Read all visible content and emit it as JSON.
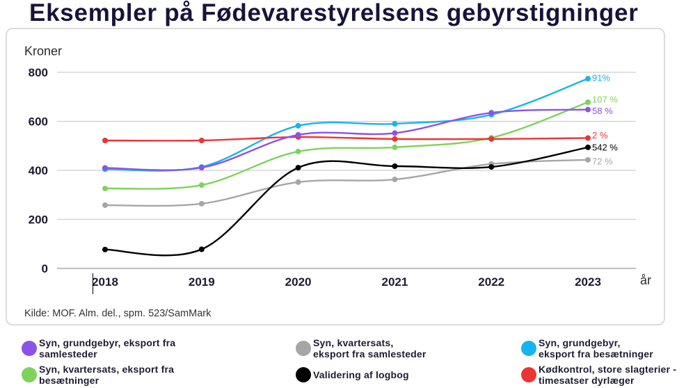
{
  "colors": {
    "title": "#17143a",
    "legend_text": "#1d1b33"
  },
  "chart_data": {
    "type": "line",
    "title": "Eksempler på Fødevarestyrelsens gebyrstigninger",
    "ylabel": "Kroner",
    "xlabel": "år",
    "x": [
      2018,
      2019,
      2020,
      2021,
      2022,
      2023
    ],
    "ylim": [
      0,
      800
    ],
    "yticks": [
      0,
      200,
      400,
      600,
      800
    ],
    "grid": true,
    "smoothed": true,
    "legend_position": "bottom",
    "series": [
      {
        "name": "Syn, grundgebyr, eksport fra\nsamlesteder",
        "color": "#8c52e8",
        "values": [
          410,
          411,
          545,
          552,
          635,
          648
        ],
        "end_label": "58 %"
      },
      {
        "name": "Syn, kvartersats,\neksport fra samlesteder",
        "color": "#a6a6a6",
        "values": [
          258,
          264,
          352,
          363,
          426,
          443
        ],
        "end_label": "72 %"
      },
      {
        "name": "Syn, grundgebyr,\neksport fra besætninger",
        "color": "#17b3ef",
        "values": [
          405,
          414,
          582,
          590,
          627,
          774
        ],
        "end_label": "91%"
      },
      {
        "name": "Syn, kvartersats, eksport fra\nbesætninger",
        "color": "#7dd35b",
        "values": [
          326,
          340,
          477,
          494,
          533,
          678
        ],
        "end_label": "107 %"
      },
      {
        "name": "Validering af logbog",
        "color": "#000000",
        "values": [
          77,
          78,
          411,
          417,
          414,
          494
        ],
        "end_label": "542 %"
      },
      {
        "name": "Kødkontrol, store slagterier -\ntimesatser dyrlæger",
        "color": "#ec3434",
        "values": [
          522,
          522,
          536,
          528,
          528,
          532
        ],
        "end_label": "2 %"
      }
    ],
    "source": "Kilde: MOF. Alm. del., spm. 523/SamMark"
  }
}
